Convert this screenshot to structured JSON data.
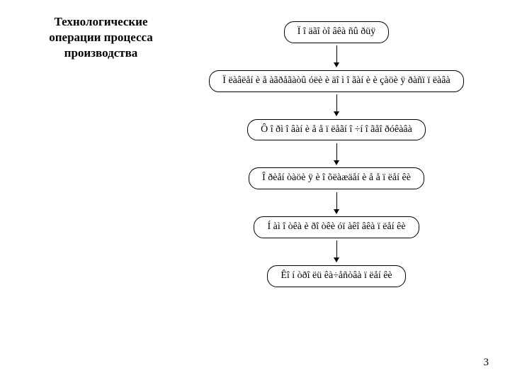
{
  "title": "Технологические операции процесса производства",
  "pageNumber": "3",
  "flowchart": {
    "type": "flowchart",
    "direction": "vertical",
    "background_color": "#ffffff",
    "border_color": "#000000",
    "text_color": "#000000",
    "border_radius": 14,
    "box_fontsize": 14,
    "steps": [
      {
        "label": "Ï î äãî òî âêà ñû ðüÿ"
      },
      {
        "label": "Ï ëàâëåí è å àãðåãàòû óëè è äî ì î ãàí è è çàöè ÿ ðàñï ï ëàâà"
      },
      {
        "label": "Ô î ðì î âàí è å å ï ëåãí î ÷í î ãåî ðóêàâà"
      },
      {
        "label": "Î ðèåí òàöè ÿ è î õëàæäåí è å å ï ëåí êè"
      },
      {
        "label": "Í àì î òêà è ðî òêè óï àêî âêà ï ëåí êè"
      },
      {
        "label": "Êî í òðî ëü êà÷åñòâà ï ëåí êè"
      }
    ]
  }
}
